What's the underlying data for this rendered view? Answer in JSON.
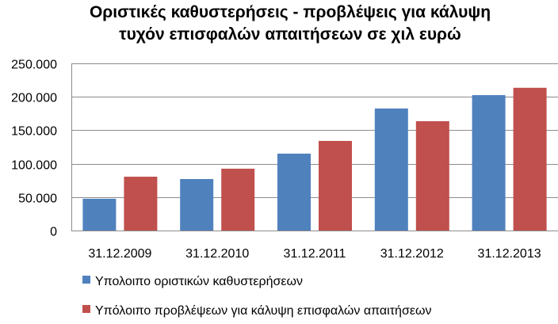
{
  "chart_data": {
    "type": "bar",
    "title_lines": [
      "Οριστικές καθυστερήσεις - προβλέψεις για κάλυψη",
      "τυχόν επισφαλών απαιτήσεων σε χιλ ευρώ"
    ],
    "categories": [
      "31.12.2009",
      "31.12.2010",
      "31.12.2011",
      "31.12.2012",
      "31.12.2013"
    ],
    "series": [
      {
        "name": "Υπολοιπο οριστικών καθυστερήσεων",
        "color": "#4F81BD",
        "values": [
          47500,
          77000,
          115000,
          182500,
          202500
        ]
      },
      {
        "name": "Υπόλοιπο προβλέψεων για κάλυψη επισφαλών απαιτήσεων",
        "color": "#C0504D",
        "values": [
          80500,
          92500,
          134000,
          163500,
          213500
        ]
      }
    ],
    "ylim": [
      0,
      250000
    ],
    "y_ticks": [
      {
        "value": 0,
        "label": "0"
      },
      {
        "value": 50000,
        "label": "50.000"
      },
      {
        "value": 100000,
        "label": "100.000"
      },
      {
        "value": 150000,
        "label": "150.000"
      },
      {
        "value": 200000,
        "label": "200.000"
      },
      {
        "value": 250000,
        "label": "250.000"
      }
    ],
    "grid": true,
    "legend_position": "bottom"
  }
}
